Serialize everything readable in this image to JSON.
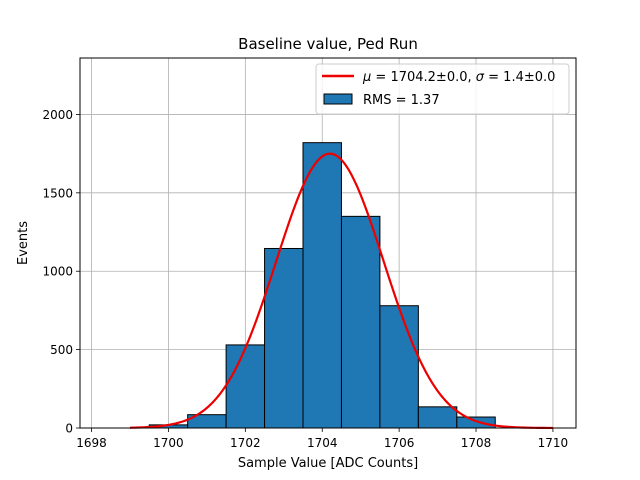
{
  "chart_data": {
    "type": "bar",
    "title": "Baseline value, Ped Run",
    "xlabel": "Sample Value [ADC Counts]",
    "ylabel": "Events",
    "xlim": [
      1697.7,
      1710.6
    ],
    "ylim": [
      0,
      2360
    ],
    "xticks": [
      1698,
      1700,
      1702,
      1704,
      1706,
      1708,
      1710
    ],
    "yticks": [
      0,
      500,
      1000,
      1500,
      2000
    ],
    "grid": true,
    "legend_position": "top-right",
    "histogram": {
      "name": "RMS = 1.37",
      "color": "#1f77b4",
      "edgecolor": "#000000",
      "bins": [
        {
          "left": 1699.5,
          "right": 1700.5,
          "count": 20
        },
        {
          "left": 1700.5,
          "right": 1701.5,
          "count": 85
        },
        {
          "left": 1701.5,
          "right": 1702.5,
          "count": 530
        },
        {
          "left": 1702.5,
          "right": 1703.5,
          "count": 1145
        },
        {
          "left": 1703.5,
          "right": 1704.5,
          "count": 1820
        },
        {
          "left": 1704.5,
          "right": 1705.5,
          "count": 1350
        },
        {
          "left": 1705.5,
          "right": 1706.5,
          "count": 780
        },
        {
          "left": 1706.5,
          "right": 1707.5,
          "count": 135
        },
        {
          "left": 1707.5,
          "right": 1708.5,
          "count": 70
        }
      ]
    },
    "fit": {
      "name": "$\\mu = 1704.2\\pm0.0$, $\\sigma = 1.4\\pm0.0$",
      "legend_parts": [
        "μ",
        " = 1704.2±0.0, ",
        "σ",
        " = 1.4±0.0"
      ],
      "type": "gaussian",
      "mu": 1704.2,
      "sigma": 1.4,
      "amplitude": 1750,
      "x_range": [
        1699,
        1710
      ],
      "color": "#ee0000"
    }
  }
}
